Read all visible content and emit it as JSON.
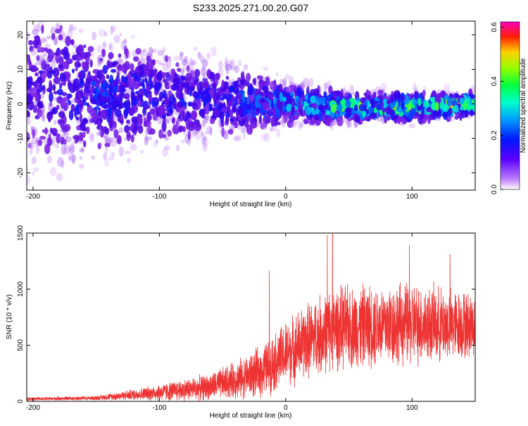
{
  "title": "S233.2025.271.00.20.G07",
  "chart_data": [
    {
      "type": "heatmap",
      "panel": "spectrogram",
      "xlabel": "Height of straight line (km)",
      "ylabel": "Frequency (Hz)",
      "xlim": [
        -205,
        150
      ],
      "ylim": [
        -25,
        24
      ],
      "xticks": [
        -200,
        -100,
        0,
        100
      ],
      "yticks": [
        -20,
        -10,
        0,
        10,
        20
      ],
      "colorbar": {
        "label": "Normalized spectral amplitude",
        "range": [
          0.0,
          0.62
        ],
        "ticks": [
          0.0,
          0.2,
          0.4,
          0.6
        ],
        "tick_labels": [
          "0.0",
          "0.2",
          "0.4",
          "0.6"
        ],
        "colormap": [
          "#ffffff",
          "#9b30ff",
          "#3300ff",
          "#0050ff",
          "#00d0ff",
          "#00ff80",
          "#80ff00",
          "#ffd000",
          "#ff0000",
          "#ff00a0"
        ]
      },
      "band_center_freq_hz": [
        {
          "x": -200,
          "f": 5
        },
        {
          "x": -150,
          "f": 3
        },
        {
          "x": -100,
          "f": 2
        },
        {
          "x": -50,
          "f": 1
        },
        {
          "x": 0,
          "f": 0
        },
        {
          "x": 50,
          "f": -1
        },
        {
          "x": 100,
          "f": -1
        },
        {
          "x": 150,
          "f": 0
        }
      ],
      "band_halfwidth_hz": [
        {
          "x": -200,
          "w": 25
        },
        {
          "x": -150,
          "w": 18
        },
        {
          "x": -100,
          "w": 14
        },
        {
          "x": -50,
          "w": 11
        },
        {
          "x": 0,
          "w": 6
        },
        {
          "x": 50,
          "w": 4
        },
        {
          "x": 100,
          "w": 4
        },
        {
          "x": 150,
          "w": 3
        }
      ],
      "peak_amplitude": [
        {
          "x": -200,
          "a": 0.15
        },
        {
          "x": -150,
          "a": 0.22
        },
        {
          "x": -100,
          "a": 0.2
        },
        {
          "x": -50,
          "a": 0.2
        },
        {
          "x": 0,
          "a": 0.3
        },
        {
          "x": 50,
          "a": 0.45
        },
        {
          "x": 100,
          "a": 0.45
        },
        {
          "x": 150,
          "a": 0.5
        }
      ]
    },
    {
      "type": "line",
      "panel": "snr",
      "xlabel": "Height of straight line (km)",
      "ylabel": "SNR (10 * v/v)",
      "xlim": [
        -205,
        150
      ],
      "ylim": [
        0,
        1500
      ],
      "xticks": [
        -200,
        -100,
        0,
        100
      ],
      "yticks": [
        0,
        500,
        1000,
        1500
      ],
      "series": [
        {
          "name": "SNR",
          "color": "#ee3333",
          "envelope_mean": [
            {
              "x": -205,
              "y": 20
            },
            {
              "x": -150,
              "y": 30
            },
            {
              "x": -120,
              "y": 60
            },
            {
              "x": -90,
              "y": 90
            },
            {
              "x": -60,
              "y": 130
            },
            {
              "x": -40,
              "y": 190
            },
            {
              "x": -20,
              "y": 260
            },
            {
              "x": 0,
              "y": 420
            },
            {
              "x": 20,
              "y": 560
            },
            {
              "x": 40,
              "y": 650
            },
            {
              "x": 70,
              "y": 680
            },
            {
              "x": 100,
              "y": 690
            },
            {
              "x": 130,
              "y": 680
            },
            {
              "x": 150,
              "y": 680
            }
          ],
          "envelope_spread": [
            {
              "x": -205,
              "s": 15
            },
            {
              "x": -150,
              "s": 20
            },
            {
              "x": -120,
              "s": 50
            },
            {
              "x": -90,
              "s": 90
            },
            {
              "x": -60,
              "s": 120
            },
            {
              "x": -40,
              "s": 170
            },
            {
              "x": -20,
              "s": 230
            },
            {
              "x": 0,
              "s": 300
            },
            {
              "x": 20,
              "s": 350
            },
            {
              "x": 40,
              "s": 380
            },
            {
              "x": 70,
              "s": 380
            },
            {
              "x": 100,
              "s": 380
            },
            {
              "x": 130,
              "s": 330
            },
            {
              "x": 150,
              "s": 300
            }
          ],
          "notable_peaks": [
            {
              "x": -13,
              "y": 1160
            },
            {
              "x": 33,
              "y": 1480
            },
            {
              "x": 37,
              "y": 1500
            },
            {
              "x": 98,
              "y": 1390
            },
            {
              "x": 130,
              "y": 1310
            }
          ]
        }
      ]
    }
  ]
}
